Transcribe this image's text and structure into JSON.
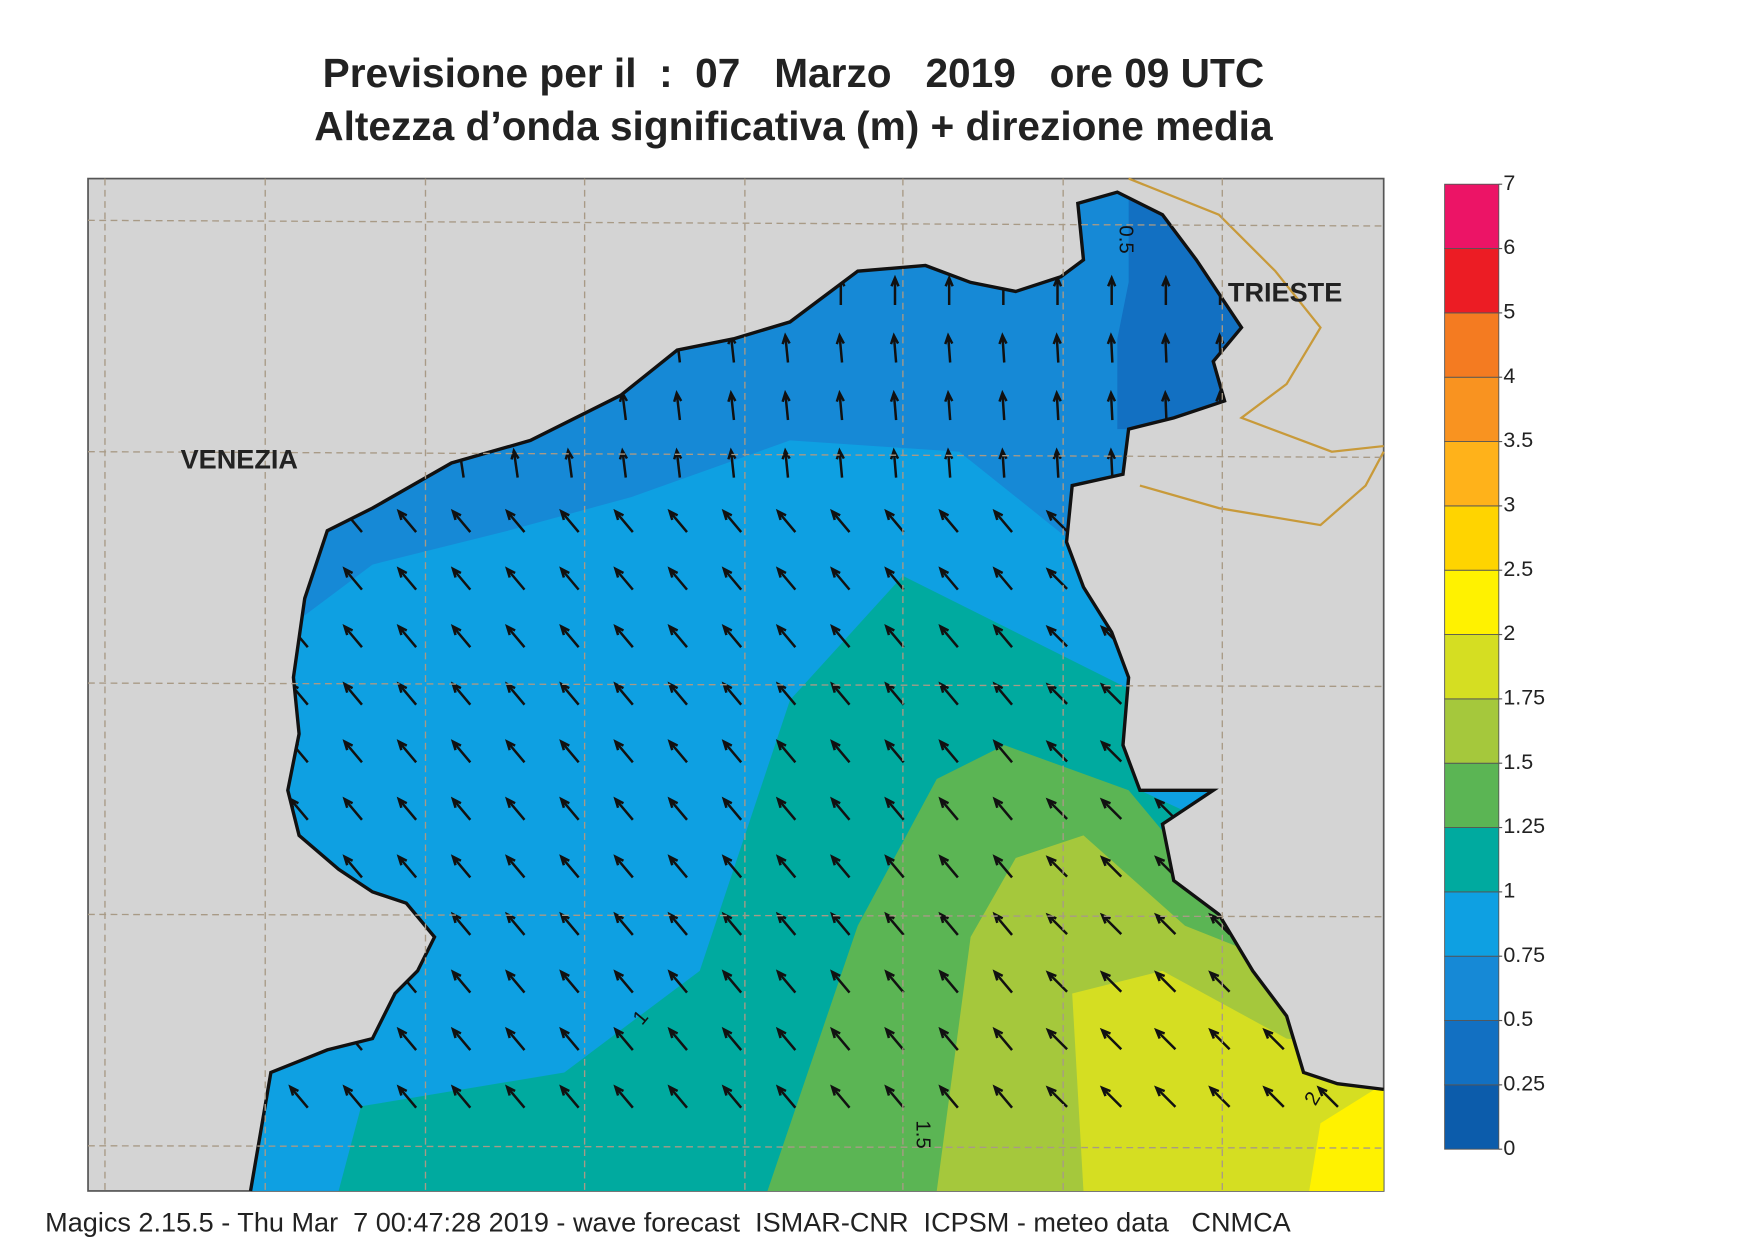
{
  "title": {
    "line1": "Previsione per il  :  07   Marzo   2019   ore 09 UTC",
    "line2": "Altezza d’onda significativa (m) + direzione media"
  },
  "places": [
    "VENEZIA",
    "TRIESTE"
  ],
  "contour_labels": [
    "0.5",
    "1",
    "1.5",
    "2"
  ],
  "colorbar": {
    "ticks": [
      0,
      0.25,
      0.5,
      0.75,
      1,
      1.25,
      1.5,
      1.75,
      2,
      2.5,
      3,
      3.5,
      4,
      5,
      6,
      7
    ],
    "colors": [
      "#0c5cab",
      "#1270c2",
      "#1689d6",
      "#0ea0e2",
      "#00aa9f",
      "#5bb554",
      "#a5c83c",
      "#d5de22",
      "#fff200",
      "#ffd400",
      "#ffb21a",
      "#f99320",
      "#f47b21",
      "#ec1c24",
      "#ec1466"
    ]
  },
  "footer": "Magics 2.15.5 - Thu Mar  7 00:47:28 2019 - wave forecast  ISMAR-CNR  ICPSM - meteo data   CNMCA"
}
